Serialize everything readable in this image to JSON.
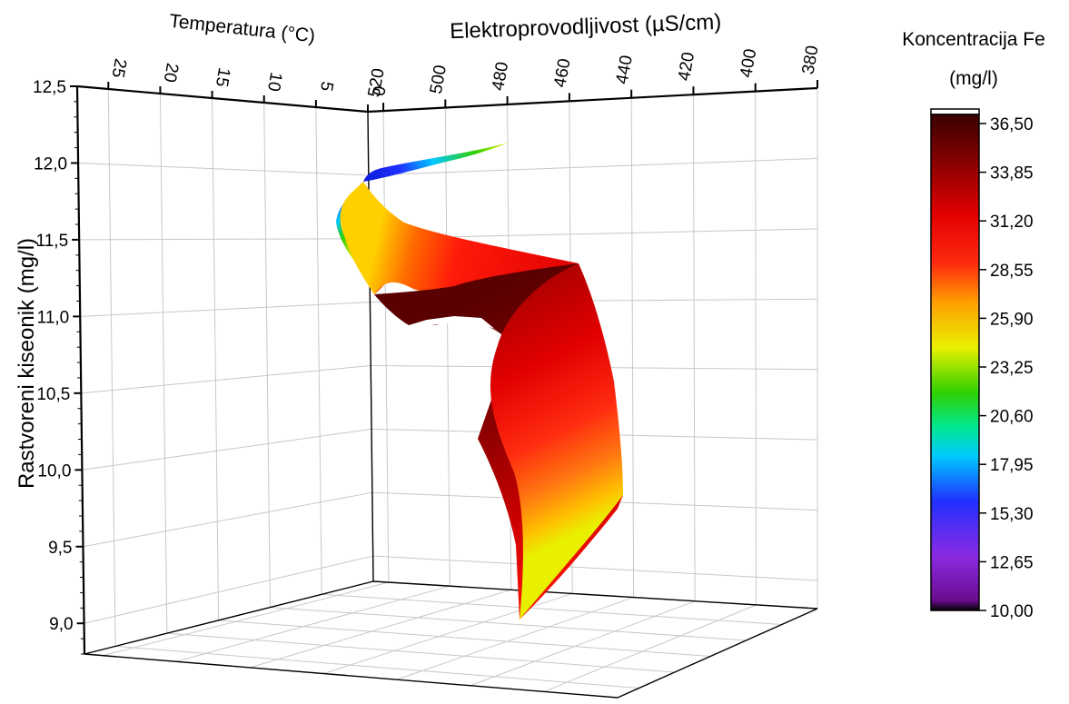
{
  "chart_data": {
    "type": "surface-3d",
    "axes": {
      "z": {
        "label": "Rastvoreni kiseonik (mg/l)",
        "ticks": [
          "12,5",
          "12,0",
          "11,5",
          "11,0",
          "10,5",
          "10,0",
          "9,5",
          "9,0"
        ],
        "tick_values": [
          12.5,
          12.0,
          11.5,
          11.0,
          10.5,
          10.0,
          9.5,
          9.0
        ],
        "range": [
          8.8,
          12.5
        ]
      },
      "temperature": {
        "label": "Temperatura (°C)",
        "ticks": [
          "25",
          "20",
          "15",
          "10",
          "5",
          "0"
        ],
        "tick_values": [
          25,
          20,
          15,
          10,
          5,
          0
        ],
        "range": [
          0,
          28
        ]
      },
      "conductivity": {
        "label": "Elektroprovodljivost (µS/cm)",
        "ticks": [
          "520",
          "500",
          "480",
          "460",
          "440",
          "420",
          "400",
          "380"
        ],
        "tick_values": [
          520,
          500,
          480,
          460,
          440,
          420,
          400,
          380
        ],
        "range": [
          380,
          525
        ]
      }
    },
    "colorbar": {
      "title_line1": "Koncentracija Fe",
      "title_line2": "(mg/l)",
      "ticks": [
        "36,50",
        "33,85",
        "31,20",
        "28,55",
        "25,90",
        "23,25",
        "20,60",
        "17,95",
        "15,30",
        "12,65",
        "10,00"
      ],
      "tick_values": [
        36.5,
        33.85,
        31.2,
        28.55,
        25.9,
        23.25,
        20.6,
        17.95,
        15.3,
        12.65,
        10.0
      ],
      "min": 10.0,
      "max": 36.5,
      "colors": [
        "#000000",
        "#6a0c8e",
        "#8a2be2",
        "#2020ff",
        "#00c8ff",
        "#00e080",
        "#30d000",
        "#e8f000",
        "#ffa500",
        "#ff1a0a",
        "#e00000",
        "#8a0000",
        "#3a0000"
      ]
    },
    "grid": true
  }
}
